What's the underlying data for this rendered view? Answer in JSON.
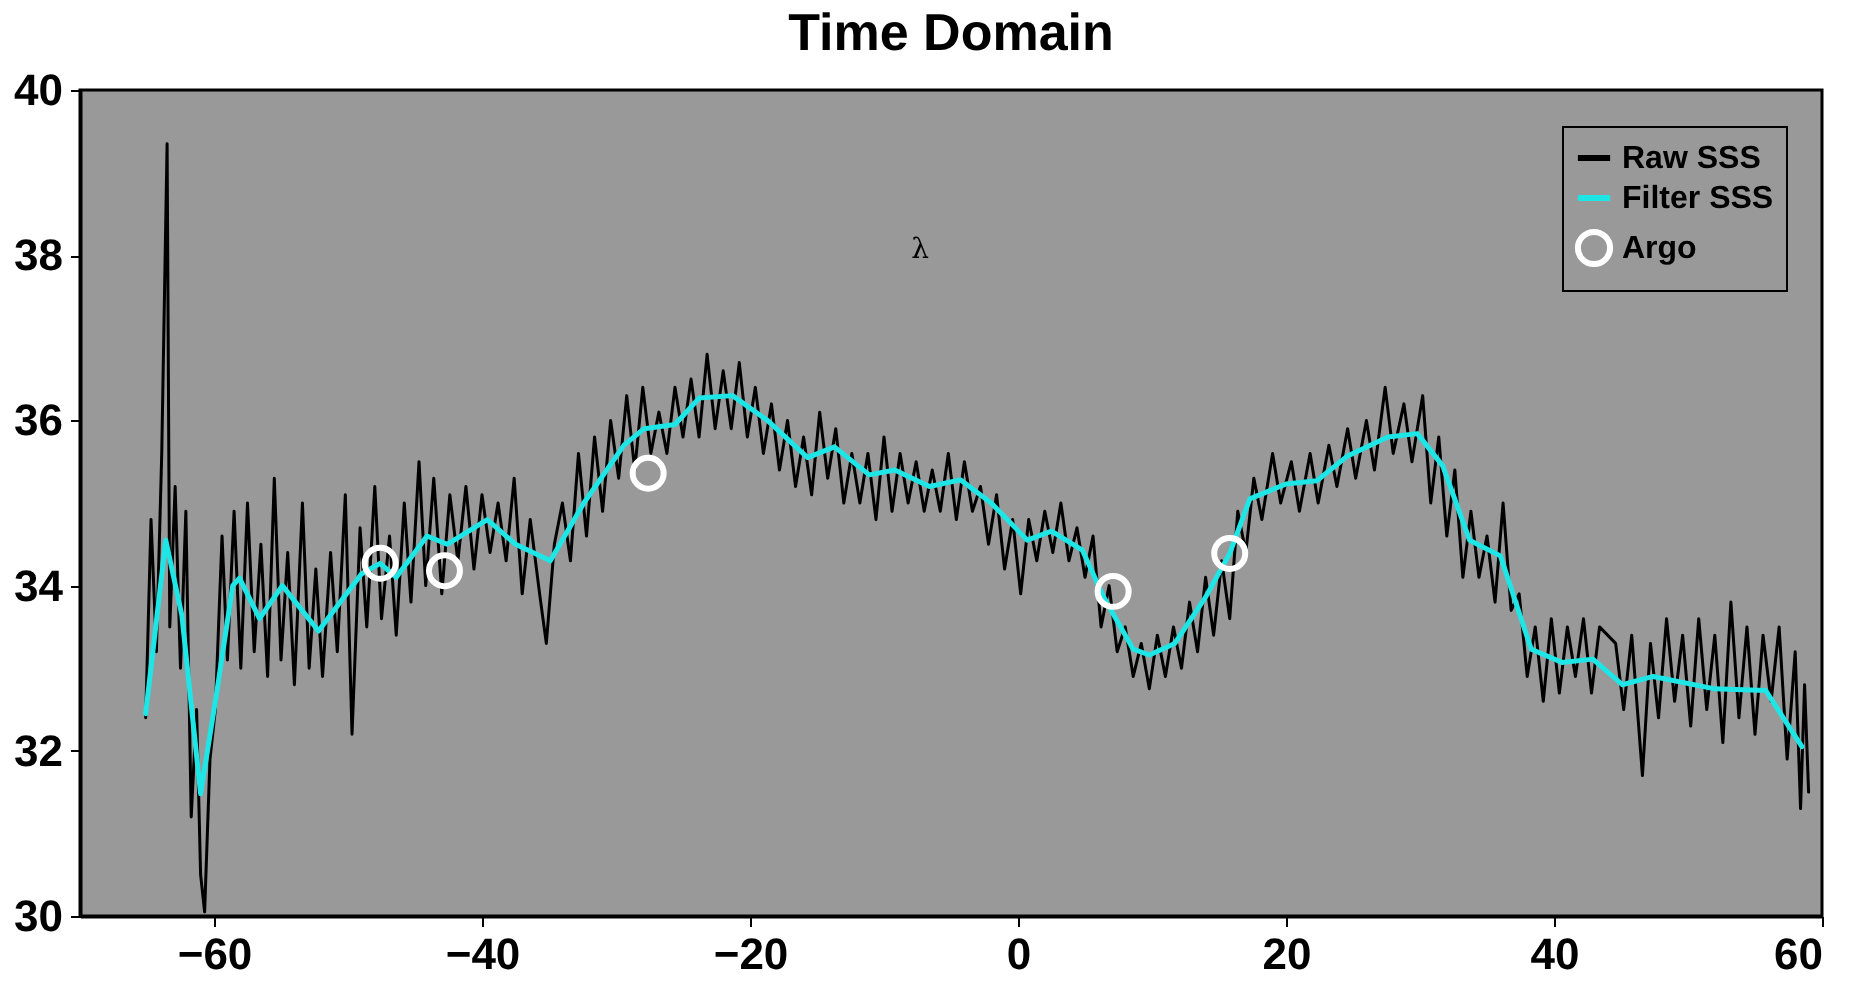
{
  "chart_data": {
    "type": "line",
    "title": "Time Domain",
    "xlim": [
      -70,
      60
    ],
    "ylim": [
      30,
      40
    ],
    "xticks": [
      -60,
      -40,
      -20,
      0,
      20,
      40,
      60
    ],
    "yticks": [
      30,
      32,
      34,
      36,
      38,
      40
    ],
    "grid": false,
    "legend": "top right",
    "annotations": [
      "λ"
    ],
    "series": [
      {
        "name": "Raw SSS",
        "type": "line",
        "color": "#000000",
        "line_style": "solid",
        "x": [
          -65.1,
          -64.7,
          -64.3,
          -63.9,
          -63.5,
          -63.3,
          -62.9,
          -62.5,
          -62.1,
          -61.7,
          -61.3,
          -61.0,
          -60.7,
          -60.3,
          -59.9,
          -59.4,
          -59.0,
          -58.5,
          -58.0,
          -57.5,
          -57.0,
          -56.5,
          -56.0,
          -55.5,
          -55.0,
          -54.5,
          -54.0,
          -53.4,
          -52.9,
          -52.4,
          -51.9,
          -51.3,
          -50.8,
          -50.2,
          -49.7,
          -49.1,
          -48.6,
          -48.0,
          -47.5,
          -46.9,
          -46.4,
          -45.8,
          -45.3,
          -44.7,
          -44.2,
          -43.6,
          -43.0,
          -42.4,
          -41.8,
          -41.2,
          -40.6,
          -40.0,
          -39.4,
          -38.8,
          -38.2,
          -37.6,
          -37.0,
          -36.4,
          -35.7,
          -35.2,
          -34.6,
          -34.0,
          -33.4,
          -32.8,
          -32.2,
          -31.6,
          -31.0,
          -30.4,
          -29.8,
          -29.2,
          -28.6,
          -28.0,
          -27.4,
          -26.8,
          -26.2,
          -25.6,
          -25.0,
          -24.4,
          -23.8,
          -23.2,
          -22.6,
          -22.0,
          -21.4,
          -20.8,
          -20.2,
          -19.6,
          -19.0,
          -18.4,
          -17.8,
          -17.2,
          -16.6,
          -16.0,
          -15.4,
          -14.8,
          -14.2,
          -13.6,
          -13.0,
          -12.4,
          -11.8,
          -11.2,
          -10.6,
          -10.0,
          -9.4,
          -8.8,
          -8.2,
          -7.6,
          -7.0,
          -6.4,
          -5.8,
          -5.2,
          -4.6,
          -4.0,
          -3.4,
          -2.8,
          -2.2,
          -1.6,
          -1.0,
          -0.4,
          0.2,
          0.8,
          1.4,
          2.0,
          2.6,
          3.2,
          3.8,
          4.4,
          5.0,
          5.6,
          6.2,
          6.8,
          7.4,
          8.0,
          8.6,
          9.2,
          9.8,
          10.4,
          11.0,
          11.6,
          12.2,
          12.8,
          13.4,
          14.0,
          14.6,
          15.2,
          15.8,
          16.4,
          17.0,
          17.6,
          18.2,
          19.0,
          19.6,
          20.4,
          21.0,
          21.8,
          22.4,
          23.2,
          23.8,
          24.6,
          25.2,
          26.0,
          26.6,
          27.4,
          28.0,
          28.8,
          29.4,
          30.2,
          30.8,
          31.4,
          32.0,
          32.6,
          33.2,
          33.8,
          34.4,
          35.0,
          35.6,
          36.2,
          36.8,
          37.4,
          38.0,
          38.6,
          39.2,
          39.8,
          40.4,
          41.0,
          41.6,
          42.2,
          42.8,
          43.4,
          44.6,
          45.2,
          45.8,
          46.6,
          47.2,
          47.8,
          48.4,
          49.0,
          49.6,
          50.2,
          50.8,
          51.4,
          52.0,
          52.6,
          53.2,
          53.8,
          54.4,
          55.0,
          55.6,
          56.2,
          56.8,
          57.4,
          58.0,
          58.4,
          58.7,
          59.0
        ],
        "values": [
          32.4,
          34.8,
          33.2,
          35.6,
          39.35,
          33.5,
          35.2,
          33.0,
          34.9,
          31.2,
          32.5,
          30.5,
          30.05,
          31.9,
          32.5,
          34.6,
          33.1,
          34.9,
          33.0,
          35.0,
          33.2,
          34.5,
          32.9,
          35.3,
          33.1,
          34.4,
          32.8,
          35.0,
          33.0,
          34.2,
          32.9,
          34.4,
          33.2,
          35.1,
          32.2,
          34.7,
          33.5,
          35.2,
          33.6,
          34.6,
          33.4,
          35.0,
          33.8,
          35.5,
          34.0,
          35.3,
          33.9,
          35.1,
          34.3,
          35.2,
          34.2,
          35.1,
          34.4,
          35.0,
          34.3,
          35.3,
          33.9,
          34.8,
          33.9,
          33.3,
          34.5,
          35.0,
          34.3,
          35.6,
          34.6,
          35.8,
          34.9,
          36.0,
          35.3,
          36.3,
          35.4,
          36.4,
          35.6,
          36.1,
          35.6,
          36.4,
          35.8,
          36.5,
          35.8,
          36.8,
          35.9,
          36.6,
          35.9,
          36.7,
          35.8,
          36.4,
          35.6,
          36.2,
          35.4,
          36.0,
          35.2,
          35.8,
          35.1,
          36.1,
          35.3,
          35.9,
          35.0,
          35.6,
          35.0,
          35.6,
          34.8,
          35.8,
          34.9,
          35.6,
          35.0,
          35.5,
          34.9,
          35.4,
          34.9,
          35.6,
          34.8,
          35.5,
          34.9,
          35.2,
          34.5,
          35.1,
          34.2,
          34.8,
          33.9,
          34.8,
          34.3,
          34.9,
          34.4,
          35.0,
          34.3,
          34.7,
          34.1,
          34.6,
          33.5,
          34.0,
          33.2,
          33.5,
          32.9,
          33.3,
          32.75,
          33.4,
          32.9,
          33.5,
          33.0,
          33.8,
          33.2,
          34.1,
          33.4,
          34.3,
          33.6,
          34.9,
          34.4,
          35.3,
          34.8,
          35.6,
          35.0,
          35.5,
          34.9,
          35.6,
          35.0,
          35.7,
          35.2,
          35.9,
          35.3,
          36.0,
          35.4,
          36.4,
          35.6,
          36.2,
          35.5,
          36.3,
          35.0,
          35.8,
          34.6,
          35.4,
          34.1,
          34.9,
          34.1,
          34.6,
          33.8,
          35.0,
          33.7,
          33.9,
          32.9,
          33.5,
          32.6,
          33.6,
          32.7,
          33.5,
          32.9,
          33.6,
          32.7,
          33.5,
          33.3,
          32.5,
          33.4,
          31.7,
          33.3,
          32.4,
          33.6,
          32.6,
          33.4,
          32.3,
          33.6,
          32.5,
          33.4,
          32.1,
          33.8,
          32.4,
          33.5,
          32.2,
          33.4,
          32.6,
          33.5,
          31.9,
          33.2,
          31.3,
          32.8,
          31.5
        ]
      },
      {
        "name": "Filter SSS",
        "type": "line",
        "color": "#1ee6e6",
        "line_style": "solid",
        "x": [
          -65.1,
          -63.6,
          -62.4,
          -61.0,
          -59.8,
          -58.6,
          -58.1,
          -56.6,
          -54.9,
          -52.2,
          -49.0,
          -47.6,
          -46.4,
          -44.1,
          -42.6,
          -39.6,
          -37.5,
          -34.9,
          -32.4,
          -29.4,
          -27.9,
          -25.6,
          -23.8,
          -21.3,
          -18.7,
          -15.7,
          -13.7,
          -11.1,
          -9.2,
          -6.6,
          -4.3,
          -2.0,
          0.7,
          2.5,
          4.8,
          6.4,
          8.6,
          9.8,
          11.7,
          14.0,
          15.8,
          17.3,
          20.0,
          22.3,
          24.6,
          27.6,
          29.8,
          31.7,
          33.7,
          36.0,
          38.3,
          40.6,
          42.9,
          45.1,
          47.4,
          52.0,
          55.8,
          58.5
        ],
        "values": [
          32.45,
          34.55,
          33.64,
          31.48,
          32.7,
          34.0,
          34.09,
          33.6,
          34.0,
          33.45,
          34.14,
          34.27,
          34.1,
          34.6,
          34.5,
          34.8,
          34.5,
          34.3,
          35.0,
          35.7,
          35.9,
          35.95,
          36.27,
          36.3,
          36.0,
          35.55,
          35.68,
          35.34,
          35.4,
          35.2,
          35.28,
          35.0,
          34.55,
          34.66,
          34.43,
          33.86,
          33.23,
          33.16,
          33.3,
          33.86,
          34.39,
          35.05,
          35.23,
          35.27,
          35.57,
          35.8,
          35.84,
          35.45,
          34.55,
          34.36,
          33.23,
          33.07,
          33.11,
          32.8,
          32.9,
          32.75,
          32.73,
          32.05
        ]
      },
      {
        "name": "Argo",
        "type": "scatter",
        "color": "#ffffff",
        "marker": "circle",
        "x": [
          -47.6,
          -42.8,
          -27.6,
          7.1,
          15.8
        ],
        "values": [
          34.27,
          34.18,
          35.36,
          33.93,
          34.39
        ]
      }
    ]
  }
}
